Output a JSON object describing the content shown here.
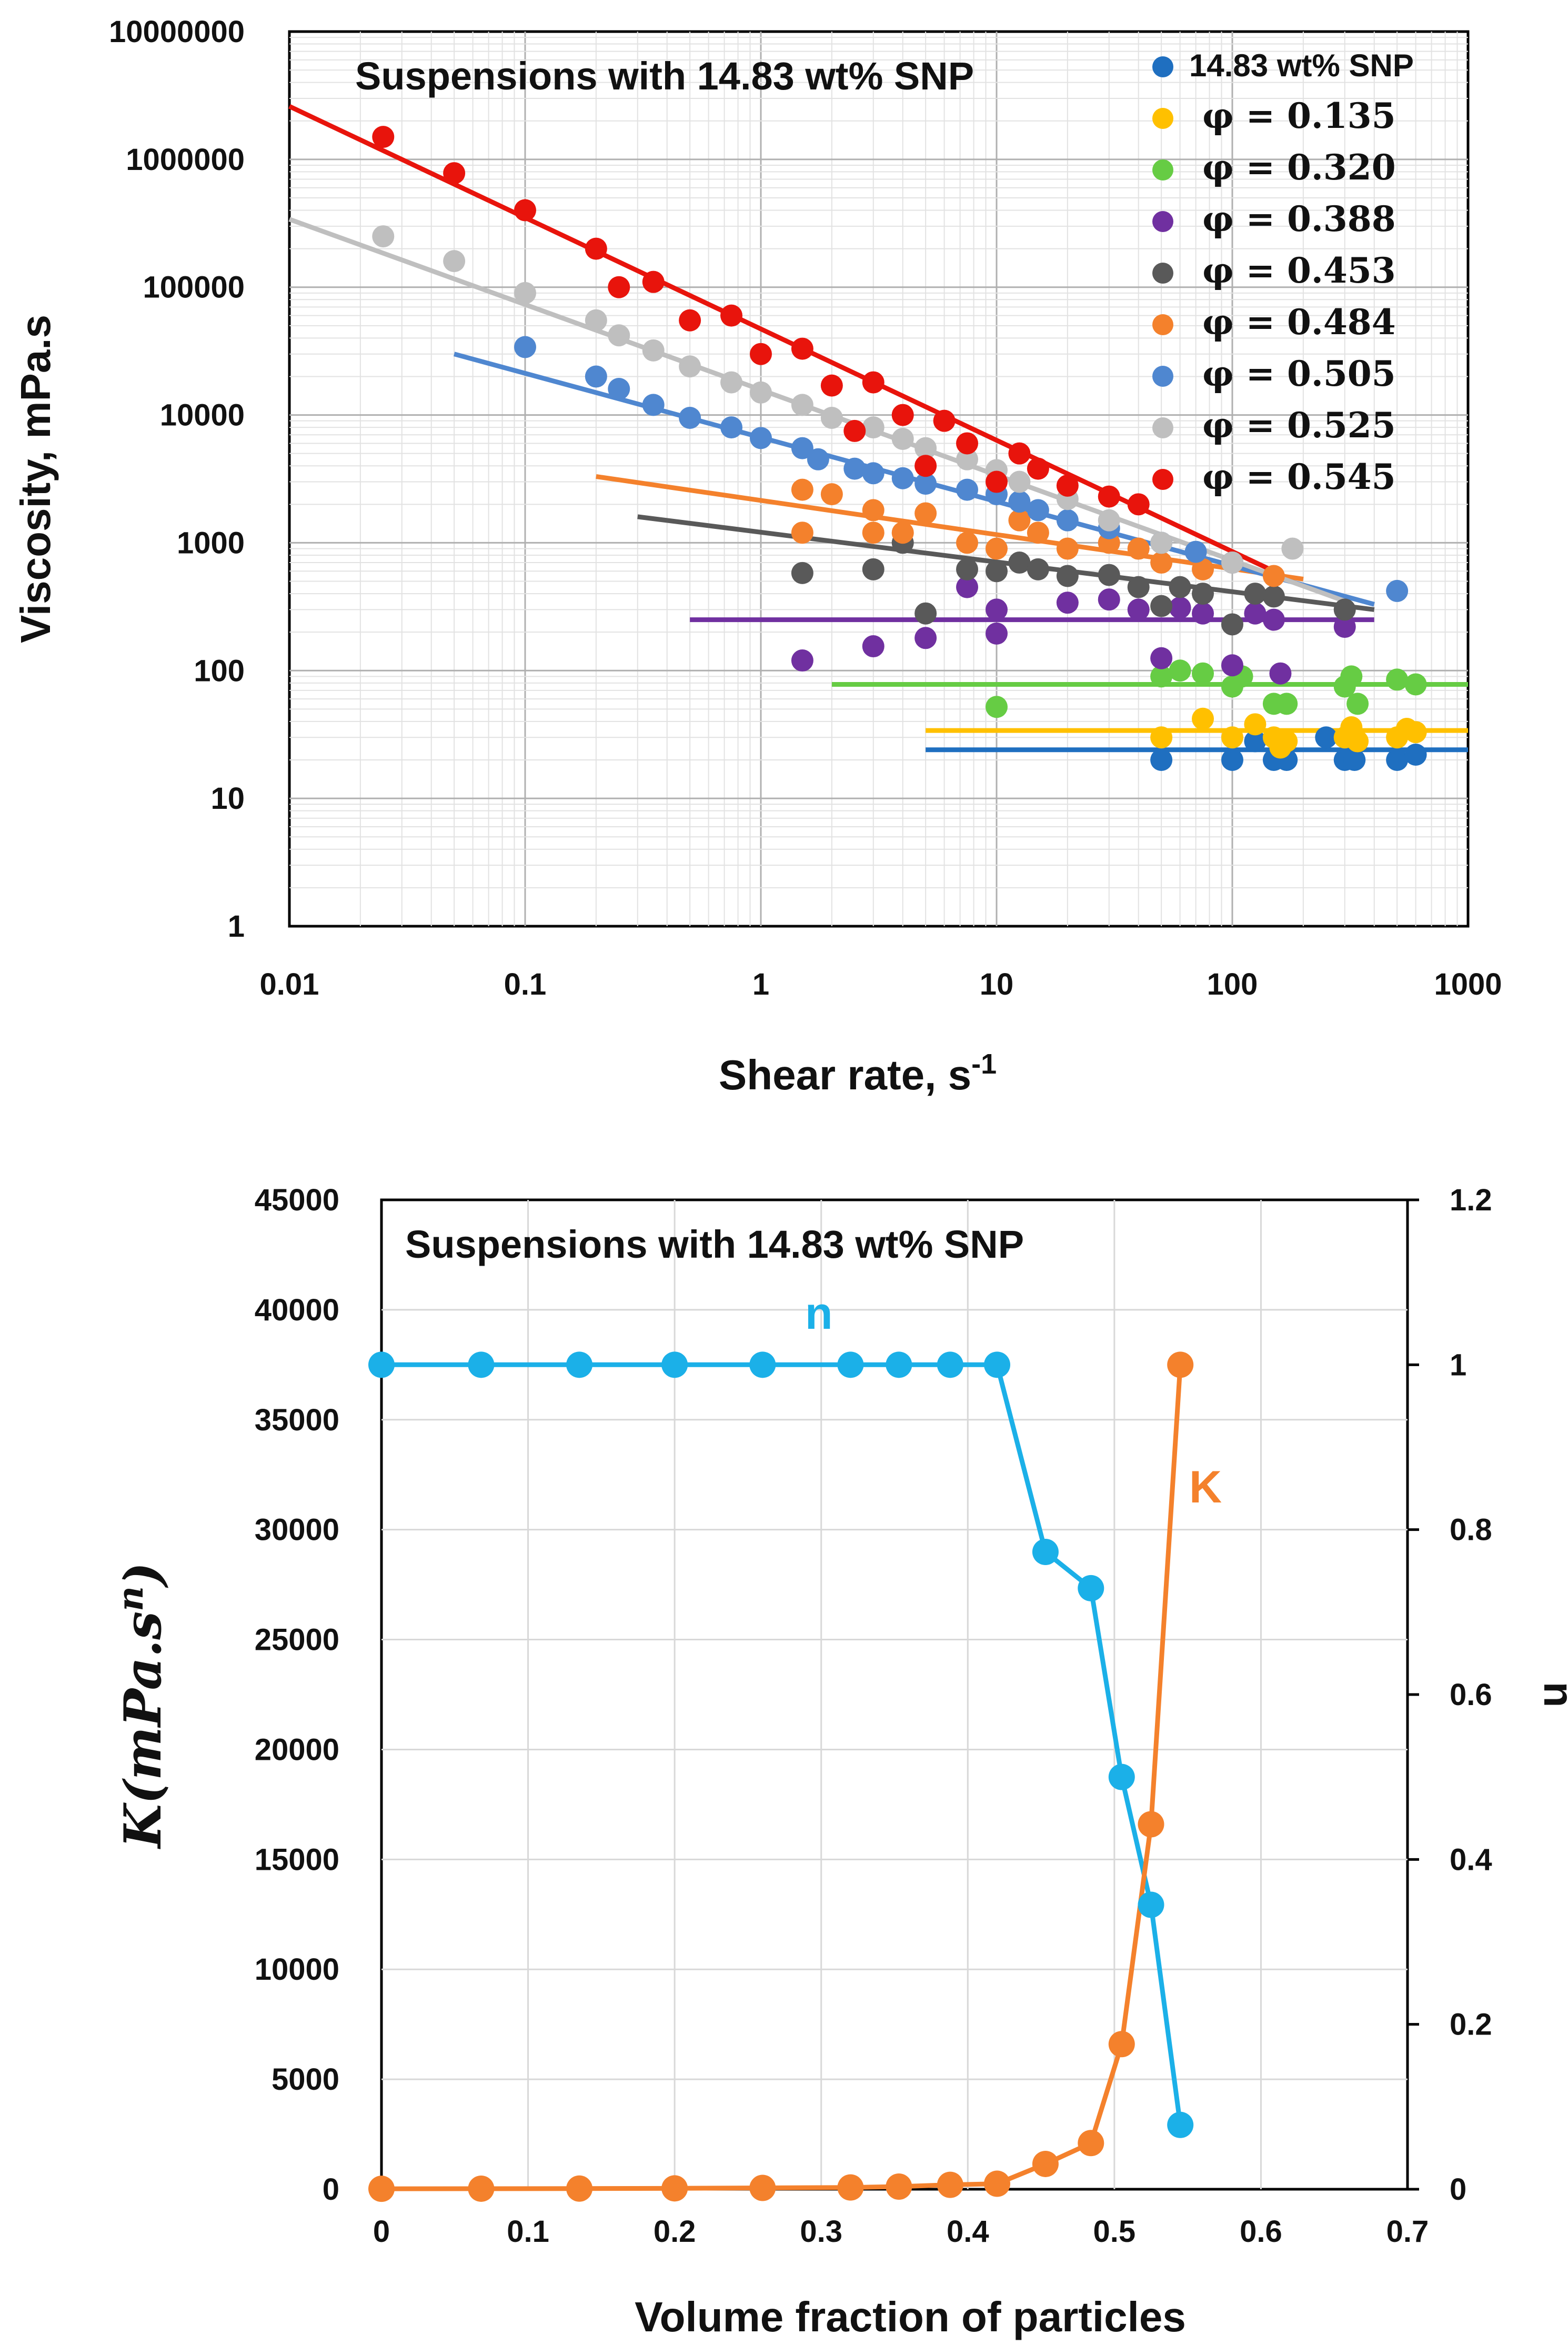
{
  "chart_data": [
    {
      "type": "scatter",
      "scale": "log-log",
      "title": "Suspensions with 14.83 wt% SNP",
      "xlabel": "Shear rate, s",
      "xlabel_sup": "-1",
      "ylabel": "Viscosity, mPa.s",
      "xlim": [
        0.01,
        1000
      ],
      "ylim": [
        1,
        10000000
      ],
      "x_ticks": [
        "0.01",
        "0.1",
        "1",
        "10",
        "100",
        "1000"
      ],
      "y_ticks": [
        "1",
        "10",
        "100",
        "1000",
        "10000",
        "100000",
        "1000000",
        "10000000"
      ],
      "grid": true,
      "legend_position": "top-right",
      "series": [
        {
          "name": "14.83 wt% SNP",
          "color": "#1F6FC0",
          "x": [
            50,
            100,
            150,
            170,
            300,
            330,
            500,
            600,
            250,
            125
          ],
          "y": [
            20,
            20,
            20,
            20,
            20,
            20,
            20,
            22,
            30,
            28
          ],
          "fit": {
            "x": [
              5,
              1000
            ],
            "y": [
              24,
              24
            ]
          }
        },
        {
          "name": "φ = 0.135",
          "color": "#FFC000",
          "x": [
            50,
            75,
            100,
            125,
            150,
            160,
            170,
            300,
            320,
            340,
            500,
            550,
            600
          ],
          "y": [
            30,
            42,
            30,
            38,
            30,
            25,
            28,
            30,
            36,
            28,
            30,
            35,
            33
          ],
          "fit": {
            "x": [
              5,
              1000
            ],
            "y": [
              34,
              34
            ]
          }
        },
        {
          "name": "φ = 0.320",
          "color": "#66CC44",
          "x": [
            10,
            50,
            60,
            75,
            100,
            110,
            150,
            170,
            300,
            320,
            340,
            500,
            600
          ],
          "y": [
            52,
            90,
            100,
            95,
            75,
            90,
            55,
            55,
            75,
            90,
            55,
            85,
            78
          ],
          "fit": {
            "x": [
              2,
              1000
            ],
            "y": [
              78,
              78
            ]
          }
        },
        {
          "name": "φ = 0.388",
          "color": "#7030A0",
          "x": [
            1.5,
            3,
            5,
            7.5,
            10,
            10,
            20,
            30,
            40,
            50,
            60,
            75,
            100,
            125,
            150,
            160,
            300
          ],
          "y": [
            120,
            155,
            180,
            450,
            300,
            195,
            340,
            360,
            300,
            125,
            310,
            280,
            110,
            280,
            250,
            95,
            220
          ],
          "fit": {
            "x": [
              0.5,
              400
            ],
            "y": [
              250,
              250
            ]
          }
        },
        {
          "name": "φ = 0.453",
          "color": "#595959",
          "x": [
            1.5,
            3,
            4,
            5,
            7.5,
            10,
            12.5,
            15,
            20,
            30,
            40,
            50,
            60,
            75,
            100,
            125,
            150,
            300
          ],
          "y": [
            580,
            620,
            1000,
            280,
            620,
            600,
            700,
            620,
            550,
            560,
            450,
            320,
            450,
            400,
            230,
            400,
            380,
            300
          ],
          "fit": {
            "x": [
              0.3,
              400
            ],
            "y": [
              1600,
              300
            ]
          }
        },
        {
          "name": "φ = 0.484",
          "color": "#F4812C",
          "x": [
            1.5,
            1.5,
            2,
            3,
            3,
            4,
            5,
            7.5,
            10,
            12.5,
            15,
            20,
            30,
            40,
            50,
            75,
            100,
            150
          ],
          "y": [
            2600,
            1200,
            2400,
            1200,
            1800,
            1200,
            1700,
            1000,
            900,
            1500,
            1200,
            900,
            1000,
            900,
            700,
            620,
            700,
            550
          ],
          "fit": {
            "x": [
              0.2,
              200
            ],
            "y": [
              3300,
              520
            ]
          }
        },
        {
          "name": "φ = 0.505",
          "color": "#4F87D0",
          "x": [
            0.1,
            0.2,
            0.25,
            0.35,
            0.5,
            0.75,
            1,
            1.5,
            1.75,
            2.5,
            3,
            4,
            5,
            7.5,
            10,
            12.5,
            15,
            20,
            30,
            50,
            70,
            100,
            500
          ],
          "y": [
            34000,
            20000,
            16000,
            12000,
            9500,
            8000,
            6600,
            5500,
            4500,
            3800,
            3500,
            3200,
            2900,
            2600,
            2400,
            2100,
            1800,
            1500,
            1300,
            1000,
            850,
            700,
            420
          ],
          "fit": {
            "x": [
              0.05,
              400
            ],
            "y": [
              30000,
              330
            ]
          }
        },
        {
          "name": "φ = 0.525",
          "color": "#BFBFBF",
          "x": [
            0.025,
            0.05,
            0.1,
            0.2,
            0.25,
            0.35,
            0.5,
            0.75,
            1,
            1.5,
            2,
            3,
            4,
            5,
            7.5,
            10,
            12.5,
            20,
            30,
            50,
            100,
            180
          ],
          "y": [
            250000,
            160000,
            90000,
            55000,
            42000,
            32000,
            24000,
            18000,
            15000,
            12000,
            9500,
            8000,
            6500,
            5500,
            4500,
            3700,
            3000,
            2200,
            1500,
            1000,
            700,
            900
          ],
          "fit": {
            "x": [
              0.01,
              300
            ],
            "y": [
              340000,
              350
            ]
          }
        },
        {
          "name": "φ = 0.545",
          "color": "#E8140C",
          "x": [
            0.025,
            0.05,
            0.1,
            0.2,
            0.25,
            0.35,
            0.5,
            0.75,
            1,
            1.5,
            2,
            2.5,
            3,
            4,
            5,
            6,
            7.5,
            10,
            12.5,
            15,
            20,
            30,
            40
          ],
          "y": [
            1500000,
            780000,
            400000,
            200000,
            100000,
            110000,
            55000,
            60000,
            30000,
            33000,
            17000,
            7500,
            18000,
            10000,
            4000,
            9000,
            6000,
            3000,
            5000,
            3800,
            2800,
            2300,
            2000
          ],
          "fit": {
            "x": [
              0.01,
              150
            ],
            "y": [
              2600000,
              600
            ]
          }
        }
      ]
    },
    {
      "type": "line",
      "title": "Suspensions with 14.83 wt% SNP",
      "xlabel": "Volume fraction of particles",
      "ylabel_left": "K(mPa.s",
      "ylabel_left_sup": "n",
      "ylabel_left_close": ")",
      "ylabel_right": "n",
      "xlim": [
        0,
        0.7
      ],
      "ylim_left": [
        0,
        45000
      ],
      "ylim_right": [
        0,
        1.2
      ],
      "x_ticks": [
        "0",
        "0.1",
        "0.2",
        "0.3",
        "0.4",
        "0.5",
        "0.6",
        "0.7"
      ],
      "y_left_ticks": [
        "0",
        "5000",
        "10000",
        "15000",
        "20000",
        "25000",
        "30000",
        "35000",
        "40000",
        "45000"
      ],
      "y_right_ticks": [
        "0",
        "0.2",
        "0.4",
        "0.6",
        "0.8",
        "1",
        "1.2"
      ],
      "grid": true,
      "x": [
        0,
        0.068,
        0.135,
        0.2,
        0.26,
        0.32,
        0.353,
        0.388,
        0.42,
        0.453,
        0.484,
        0.505,
        0.525,
        0.545
      ],
      "series": [
        {
          "name": "n",
          "axis": "right",
          "color": "#1BB0E8",
          "values": [
            1,
            1,
            1,
            1,
            1,
            1,
            1,
            1,
            1,
            0.773,
            0.729,
            0.5,
            0.345,
            0.078
          ]
        },
        {
          "name": "K",
          "axis": "left",
          "color": "#F4812C",
          "values": [
            20,
            25,
            30,
            40,
            60,
            80,
            120,
            200,
            250,
            1150,
            2100,
            6600,
            16600,
            37500
          ]
        }
      ]
    }
  ]
}
